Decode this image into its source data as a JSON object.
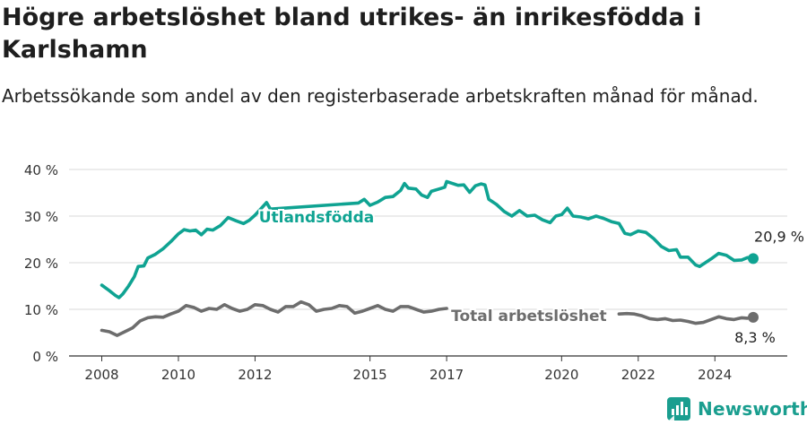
{
  "header": {
    "title": "Högre arbetslöshet bland utrikes- än inrikesfödda i Karlshamn",
    "subtitle": "Arbetssökande som andel av den registerbaserade arbetskraften månad för månad."
  },
  "brand": {
    "name": "Newsworthy",
    "icon": "newsworthy-logo-icon"
  },
  "colors": {
    "foreign": "#0fa392",
    "total": "#6d6d6d",
    "grid": "#d9d9d9",
    "axis": "#333333"
  },
  "chart_data": {
    "type": "line",
    "title": "Högre arbetslöshet bland utrikes- än inrikesfödda i Karlshamn",
    "subtitle": "Arbetssökande som andel av den registerbaserade arbetskraften månad för månad.",
    "xlabel": "",
    "ylabel": "",
    "xlim": [
      2008,
      2025
    ],
    "ylim": [
      0,
      40
    ],
    "yticks": [
      0,
      10,
      20,
      30,
      40
    ],
    "ytick_labels": [
      "0 %",
      "10 %",
      "20 %",
      "30 %",
      "40 %"
    ],
    "xticks": [
      2008,
      2010,
      2012,
      2015,
      2017,
      2020,
      2022,
      2024
    ],
    "grid": true,
    "series": [
      {
        "name": "Utlandsfödda",
        "end_label": "20,9 %",
        "gaps": [
          [
            2012.0,
            2014.7
          ]
        ],
        "points": [
          [
            2008.0,
            15.2
          ],
          [
            2008.2,
            14.0
          ],
          [
            2008.35,
            13.0
          ],
          [
            2008.45,
            12.5
          ],
          [
            2008.55,
            13.3
          ],
          [
            2008.7,
            15.0
          ],
          [
            2008.85,
            17.0
          ],
          [
            2008.95,
            19.2
          ],
          [
            2009.1,
            19.3
          ],
          [
            2009.2,
            21.0
          ],
          [
            2009.4,
            21.8
          ],
          [
            2009.6,
            23.0
          ],
          [
            2009.8,
            24.5
          ],
          [
            2010.0,
            26.2
          ],
          [
            2010.15,
            27.1
          ],
          [
            2010.3,
            26.8
          ],
          [
            2010.45,
            27.0
          ],
          [
            2010.6,
            26.0
          ],
          [
            2010.75,
            27.2
          ],
          [
            2010.9,
            27.0
          ],
          [
            2011.1,
            28.0
          ],
          [
            2011.3,
            29.7
          ],
          [
            2011.5,
            29.0
          ],
          [
            2011.7,
            28.4
          ],
          [
            2011.85,
            29.1
          ],
          [
            2012.0,
            30.2
          ],
          [
            2012.2,
            32.0
          ],
          [
            2012.3,
            32.9
          ],
          [
            2012.4,
            31.5
          ],
          [
            2014.7,
            32.8
          ],
          [
            2014.85,
            33.6
          ],
          [
            2015.0,
            32.3
          ],
          [
            2015.2,
            33.0
          ],
          [
            2015.4,
            34.0
          ],
          [
            2015.6,
            34.2
          ],
          [
            2015.8,
            35.5
          ],
          [
            2015.9,
            37.0
          ],
          [
            2016.0,
            36.0
          ],
          [
            2016.2,
            35.8
          ],
          [
            2016.35,
            34.5
          ],
          [
            2016.5,
            34.0
          ],
          [
            2016.6,
            35.3
          ],
          [
            2016.8,
            35.8
          ],
          [
            2016.95,
            36.2
          ],
          [
            2017.0,
            37.4
          ],
          [
            2017.15,
            37.0
          ],
          [
            2017.3,
            36.6
          ],
          [
            2017.45,
            36.7
          ],
          [
            2017.6,
            35.1
          ],
          [
            2017.75,
            36.5
          ],
          [
            2017.9,
            36.9
          ],
          [
            2018.0,
            36.7
          ],
          [
            2018.1,
            33.6
          ],
          [
            2018.3,
            32.5
          ],
          [
            2018.5,
            31.0
          ],
          [
            2018.7,
            30.0
          ],
          [
            2018.9,
            31.2
          ],
          [
            2019.1,
            30.0
          ],
          [
            2019.3,
            30.2
          ],
          [
            2019.5,
            29.2
          ],
          [
            2019.7,
            28.6
          ],
          [
            2019.85,
            30.0
          ],
          [
            2020.0,
            30.3
          ],
          [
            2020.15,
            31.7
          ],
          [
            2020.3,
            30.0
          ],
          [
            2020.5,
            29.8
          ],
          [
            2020.7,
            29.4
          ],
          [
            2020.9,
            30.0
          ],
          [
            2021.1,
            29.5
          ],
          [
            2021.3,
            28.8
          ],
          [
            2021.5,
            28.4
          ],
          [
            2021.65,
            26.3
          ],
          [
            2021.8,
            26.0
          ],
          [
            2022.0,
            26.8
          ],
          [
            2022.2,
            26.5
          ],
          [
            2022.4,
            25.2
          ],
          [
            2022.6,
            23.5
          ],
          [
            2022.8,
            22.6
          ],
          [
            2023.0,
            22.8
          ],
          [
            2023.1,
            21.2
          ],
          [
            2023.3,
            21.2
          ],
          [
            2023.5,
            19.5
          ],
          [
            2023.6,
            19.2
          ],
          [
            2023.75,
            20.0
          ],
          [
            2023.9,
            20.8
          ],
          [
            2024.1,
            22.0
          ],
          [
            2024.3,
            21.6
          ],
          [
            2024.5,
            20.5
          ],
          [
            2024.7,
            20.6
          ],
          [
            2024.85,
            21.1
          ],
          [
            2025.0,
            20.9
          ]
        ]
      },
      {
        "name": "Total arbetslöshet",
        "end_label": "8,3 %",
        "gaps": [
          [
            2017.0,
            2021.5
          ]
        ],
        "points": [
          [
            2008.0,
            5.5
          ],
          [
            2008.2,
            5.2
          ],
          [
            2008.4,
            4.4
          ],
          [
            2008.6,
            5.2
          ],
          [
            2008.8,
            6.0
          ],
          [
            2009.0,
            7.5
          ],
          [
            2009.2,
            8.2
          ],
          [
            2009.4,
            8.4
          ],
          [
            2009.6,
            8.3
          ],
          [
            2009.8,
            9.0
          ],
          [
            2010.0,
            9.6
          ],
          [
            2010.2,
            10.8
          ],
          [
            2010.4,
            10.4
          ],
          [
            2010.6,
            9.6
          ],
          [
            2010.8,
            10.2
          ],
          [
            2011.0,
            10.0
          ],
          [
            2011.2,
            11.0
          ],
          [
            2011.4,
            10.2
          ],
          [
            2011.6,
            9.6
          ],
          [
            2011.8,
            10.0
          ],
          [
            2012.0,
            11.0
          ],
          [
            2012.2,
            10.8
          ],
          [
            2012.4,
            10.0
          ],
          [
            2012.6,
            9.4
          ],
          [
            2012.8,
            10.6
          ],
          [
            2013.0,
            10.6
          ],
          [
            2013.2,
            11.6
          ],
          [
            2013.4,
            11.0
          ],
          [
            2013.6,
            9.6
          ],
          [
            2013.8,
            10.0
          ],
          [
            2014.0,
            10.2
          ],
          [
            2014.2,
            10.8
          ],
          [
            2014.4,
            10.6
          ],
          [
            2014.6,
            9.2
          ],
          [
            2014.8,
            9.6
          ],
          [
            2015.0,
            10.2
          ],
          [
            2015.2,
            10.8
          ],
          [
            2015.4,
            10.0
          ],
          [
            2015.6,
            9.6
          ],
          [
            2015.8,
            10.6
          ],
          [
            2016.0,
            10.6
          ],
          [
            2016.2,
            10.0
          ],
          [
            2016.4,
            9.4
          ],
          [
            2016.6,
            9.6
          ],
          [
            2016.8,
            10.0
          ],
          [
            2017.0,
            10.2
          ],
          [
            2021.5,
            9.0
          ],
          [
            2021.7,
            9.1
          ],
          [
            2021.9,
            9.0
          ],
          [
            2022.1,
            8.6
          ],
          [
            2022.3,
            8.0
          ],
          [
            2022.5,
            7.8
          ],
          [
            2022.7,
            8.0
          ],
          [
            2022.9,
            7.6
          ],
          [
            2023.1,
            7.7
          ],
          [
            2023.3,
            7.4
          ],
          [
            2023.5,
            7.0
          ],
          [
            2023.7,
            7.2
          ],
          [
            2023.9,
            7.8
          ],
          [
            2024.1,
            8.4
          ],
          [
            2024.3,
            8.0
          ],
          [
            2024.5,
            7.8
          ],
          [
            2024.7,
            8.2
          ],
          [
            2024.85,
            8.1
          ],
          [
            2025.0,
            8.3
          ]
        ]
      }
    ]
  }
}
